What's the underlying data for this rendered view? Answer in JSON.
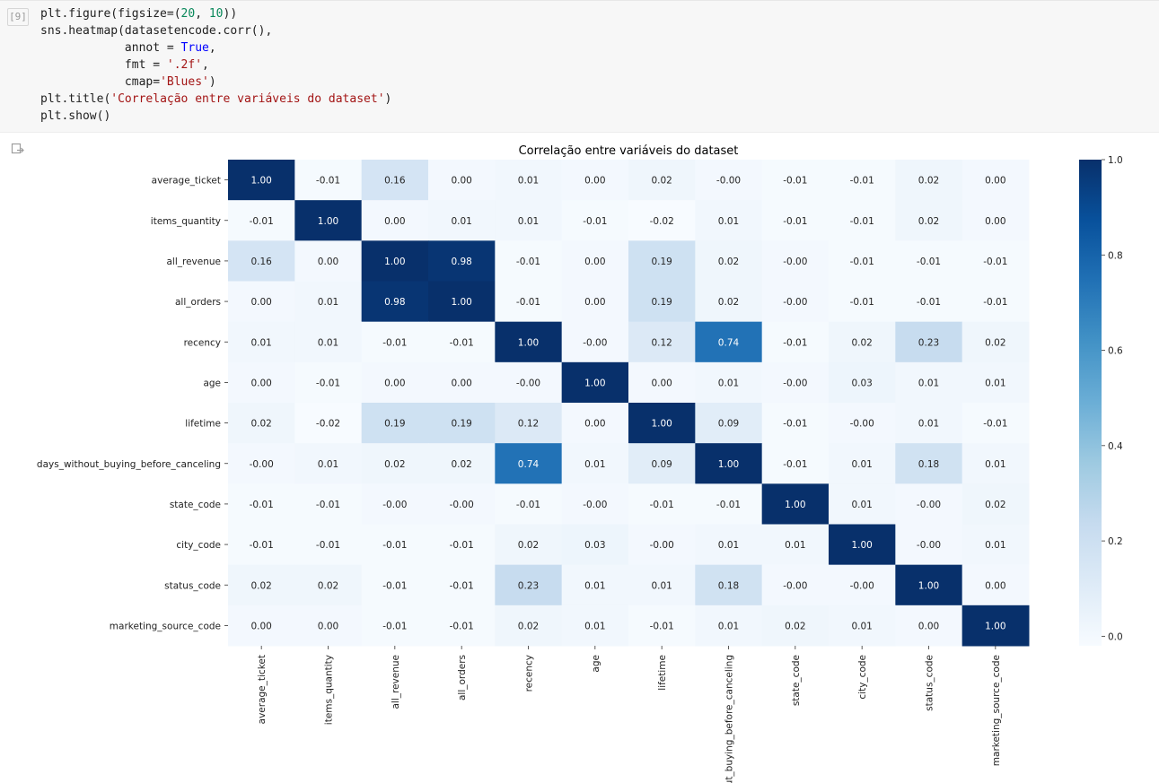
{
  "cell": {
    "execution_count": "[9]",
    "code": [
      [
        "plt.figure(figsize=(",
        {
          "t": "20",
          "c": "num"
        },
        ", ",
        {
          "t": "10",
          "c": "num"
        },
        "))"
      ],
      [
        "sns.heatmap(datasetencode.corr(),"
      ],
      [
        "            annot = ",
        {
          "t": "True",
          "c": "kw"
        },
        ","
      ],
      [
        "            fmt = ",
        {
          "t": "'.2f'",
          "c": "str"
        },
        ","
      ],
      [
        "            cmap=",
        {
          "t": "'Blues'",
          "c": "str"
        },
        ")"
      ],
      [
        "plt.title(",
        {
          "t": "'Correlação entre variáveis do dataset'",
          "c": "str"
        },
        ")"
      ],
      [
        "plt.show()"
      ]
    ]
  },
  "output": {
    "icon": "output-redirect-icon"
  },
  "chart_data": {
    "type": "heatmap",
    "title": "Correlação entre variáveis do dataset",
    "colormap": "Blues",
    "labels": [
      "average_ticket",
      "items_quantity",
      "all_revenue",
      "all_orders",
      "recency",
      "age",
      "lifetime",
      "days_without_buying_before_canceling",
      "state_code",
      "city_code",
      "status_code",
      "marketing_source_code"
    ],
    "x_tick_labels": [
      "average_ticket",
      "items_quantity",
      "all_revenue",
      "all_orders",
      "recency",
      "age",
      "lifetime",
      "out_buying_before_canceling",
      "state_code",
      "city_code",
      "status_code",
      "marketing_source_code"
    ],
    "annotations": [
      [
        "1.00",
        "-0.01",
        "0.16",
        "0.00",
        "0.01",
        "0.00",
        "0.02",
        "-0.00",
        "-0.01",
        "-0.01",
        "0.02",
        "0.00"
      ],
      [
        "-0.01",
        "1.00",
        "0.00",
        "0.01",
        "0.01",
        "-0.01",
        "-0.02",
        "0.01",
        "-0.01",
        "-0.01",
        "0.02",
        "0.00"
      ],
      [
        "0.16",
        "0.00",
        "1.00",
        "0.98",
        "-0.01",
        "0.00",
        "0.19",
        "0.02",
        "-0.00",
        "-0.01",
        "-0.01",
        "-0.01"
      ],
      [
        "0.00",
        "0.01",
        "0.98",
        "1.00",
        "-0.01",
        "0.00",
        "0.19",
        "0.02",
        "-0.00",
        "-0.01",
        "-0.01",
        "-0.01"
      ],
      [
        "0.01",
        "0.01",
        "-0.01",
        "-0.01",
        "1.00",
        "-0.00",
        "0.12",
        "0.74",
        "-0.01",
        "0.02",
        "0.23",
        "0.02"
      ],
      [
        "0.00",
        "-0.01",
        "0.00",
        "0.00",
        "-0.00",
        "1.00",
        "0.00",
        "0.01",
        "-0.00",
        "0.03",
        "0.01",
        "0.01"
      ],
      [
        "0.02",
        "-0.02",
        "0.19",
        "0.19",
        "0.12",
        "0.00",
        "1.00",
        "0.09",
        "-0.01",
        "-0.00",
        "0.01",
        "-0.01"
      ],
      [
        "-0.00",
        "0.01",
        "0.02",
        "0.02",
        "0.74",
        "0.01",
        "0.09",
        "1.00",
        "-0.01",
        "0.01",
        "0.18",
        "0.01"
      ],
      [
        "-0.01",
        "-0.01",
        "-0.00",
        "-0.00",
        "-0.01",
        "-0.00",
        "-0.01",
        "-0.01",
        "1.00",
        "0.01",
        "-0.00",
        "0.02"
      ],
      [
        "-0.01",
        "-0.01",
        "-0.01",
        "-0.01",
        "0.02",
        "0.03",
        "-0.00",
        "0.01",
        "0.01",
        "1.00",
        "-0.00",
        "0.01"
      ],
      [
        "0.02",
        "0.02",
        "-0.01",
        "-0.01",
        "0.23",
        "0.01",
        "0.01",
        "0.18",
        "-0.00",
        "-0.00",
        "1.00",
        "0.00"
      ],
      [
        "0.00",
        "0.00",
        "-0.01",
        "-0.01",
        "0.02",
        "0.01",
        "-0.01",
        "0.01",
        "0.02",
        "0.01",
        "0.00",
        "1.00"
      ]
    ],
    "colorbar": {
      "min": -0.02,
      "max": 1.0,
      "ticks": [
        "1.0",
        "0.8",
        "0.6",
        "0.4",
        "0.2",
        "0.0"
      ],
      "tick_values": [
        1.0,
        0.8,
        0.6,
        0.4,
        0.2,
        0.0
      ]
    }
  }
}
